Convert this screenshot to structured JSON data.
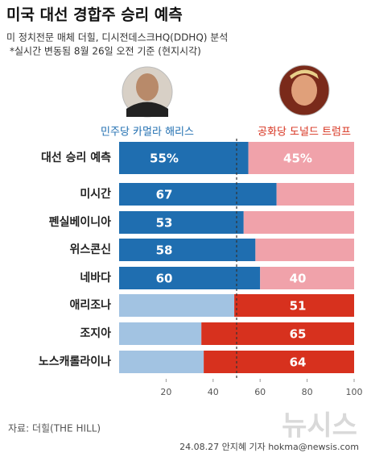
{
  "chart_data": {
    "type": "bar-split",
    "title": "미국 대선 경합주 승리 예측",
    "subtitle": [
      "미 정치전문 매체 더힐, 디시전데스크HQ(DDHQ) 분석",
      "*실시간 변동됨 8월 26일 오전 기준 (현지시각)"
    ],
    "categories": [
      "대선 승리 예측",
      "미시간",
      "펜실베이니아",
      "위스콘신",
      "네바다",
      "애리조나",
      "조지아",
      "노스캐롤라이나"
    ],
    "series": [
      {
        "name": "민주당 카멀라 해리스",
        "color": "#1f6eb0",
        "muted_color": "#a2c3e2",
        "values": [
          55,
          67,
          53,
          58,
          60,
          49,
          35,
          36
        ],
        "value_labels": [
          "55%",
          "67",
          "53",
          "58",
          "60",
          null,
          null,
          null
        ]
      },
      {
        "name": "공화당 도널드 트럼프",
        "color": "#d7311e",
        "muted_color": "#f0a2aa",
        "values": [
          45,
          33,
          47,
          42,
          40,
          51,
          65,
          64
        ],
        "value_labels": [
          "45%",
          null,
          null,
          null,
          "40",
          "51",
          "65",
          "64"
        ]
      }
    ],
    "xlim": [
      0,
      100
    ],
    "xticks": [
      20,
      40,
      60,
      80,
      100
    ],
    "reference_line": 50,
    "source": "자료: 더힐(THE HILL)",
    "watermark": "뉴시스",
    "footer": "24.08.27 안지혜 기자 hokma@newsis.com"
  }
}
